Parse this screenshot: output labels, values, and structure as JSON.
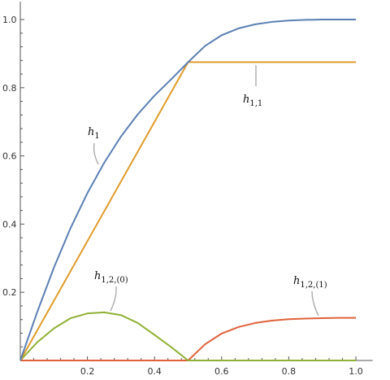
{
  "chart_data": {
    "type": "line",
    "title": "",
    "xlabel": "",
    "ylabel": "",
    "xlim": [
      0,
      1.05
    ],
    "ylim": [
      0,
      1.03
    ],
    "grid": false,
    "x_ticks": [
      "0.2",
      "0.4",
      "0.6",
      "0.8",
      "1.0"
    ],
    "y_ticks": [
      "0.2",
      "0.4",
      "0.6",
      "0.8",
      "1.0"
    ],
    "series": [
      {
        "key": "h1",
        "color": "#5b7fb4",
        "x": [
          0,
          0.05,
          0.1,
          0.15,
          0.2,
          0.25,
          0.3,
          0.35,
          0.4,
          0.45,
          0.5,
          0.55,
          0.6,
          0.65,
          0.7,
          0.75,
          0.8,
          0.85,
          0.9,
          0.95,
          1.0
        ],
        "y": [
          0,
          0.141,
          0.272,
          0.389,
          0.491,
          0.58,
          0.657,
          0.722,
          0.777,
          0.825,
          0.875,
          0.922,
          0.954,
          0.974,
          0.986,
          0.993,
          0.997,
          0.999,
          1.0,
          1.0,
          1.0
        ]
      },
      {
        "key": "h11",
        "color": "#e09b2b",
        "x": [
          0,
          0.5,
          1.0
        ],
        "y": [
          0,
          0.875,
          0.875
        ]
      },
      {
        "key": "h120",
        "color": "#8fb135",
        "x": [
          0,
          0.05,
          0.1,
          0.15,
          0.2,
          0.25,
          0.3,
          0.35,
          0.4,
          0.45,
          0.5,
          0.55,
          0.6,
          0.7,
          0.8,
          0.9,
          1.0
        ],
        "y": [
          0,
          0.053,
          0.094,
          0.124,
          0.138,
          0.141,
          0.133,
          0.11,
          0.075,
          0.039,
          0,
          0,
          0,
          0,
          0,
          0,
          0
        ]
      },
      {
        "key": "h121",
        "color": "#e0613a",
        "x": [
          0,
          0.5,
          0.55,
          0.6,
          0.65,
          0.7,
          0.75,
          0.8,
          0.85,
          0.9,
          0.95,
          1.0
        ],
        "y": [
          0,
          0,
          0.047,
          0.079,
          0.098,
          0.11,
          0.117,
          0.121,
          0.123,
          0.124,
          0.125,
          0.125
        ]
      }
    ],
    "annotations": [
      {
        "key": "h1",
        "base": "h",
        "sub": "1"
      },
      {
        "key": "h11",
        "base": "h",
        "sub": "1,1"
      },
      {
        "key": "h120",
        "base": "h",
        "sub": "1,2,(0)"
      },
      {
        "key": "h121",
        "base": "h",
        "sub": "1,2,(1)"
      }
    ]
  }
}
